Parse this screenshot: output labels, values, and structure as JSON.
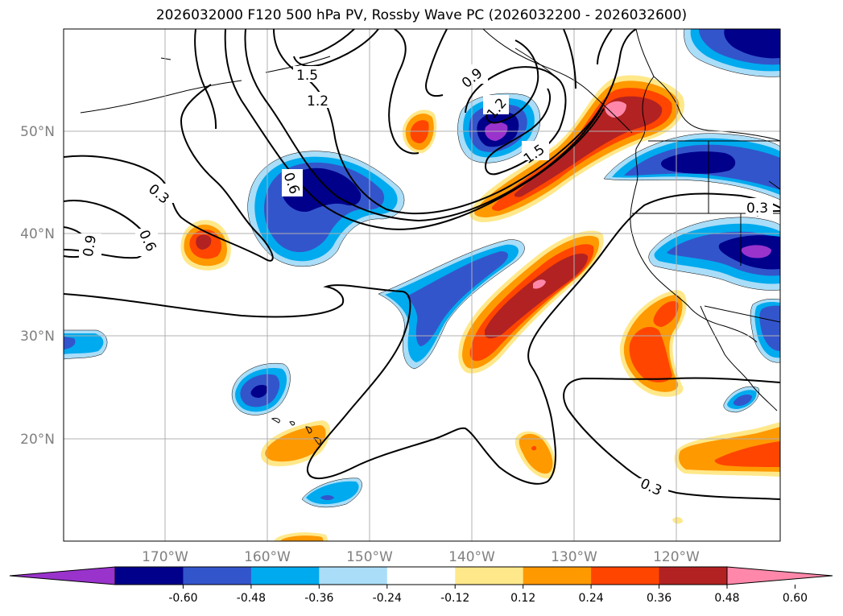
{
  "title": "2026032000 F120 500 hPa PV, Rossby Wave PC (2026032200 - 2026032600)",
  "latitude_labels": [
    "50°N",
    "40°N",
    "30°N",
    "20°N"
  ],
  "longitude_labels": [
    "170°W",
    "160°W",
    "150°W",
    "140°W",
    "130°W",
    "120°W"
  ],
  "contour_labels": [
    "1.5",
    "1.2",
    "0.9",
    "1.2",
    "1.5",
    "0.3",
    "0.6",
    "0.9",
    "0.6",
    "0.3",
    "0.3"
  ],
  "colorbar": {
    "tick_labels": [
      "-0.60",
      "-0.48",
      "-0.36",
      "-0.24",
      "-0.12",
      "0.12",
      "0.24",
      "0.36",
      "0.48",
      "0.60"
    ],
    "colors": [
      "#9933cc",
      "#00008b",
      "#3355cc",
      "#00aaee",
      "#aaddf8",
      "#ffffff",
      "#ffe88a",
      "#ff9900",
      "#ff4500",
      "#b22222",
      "#ff88aa"
    ]
  },
  "palette": {
    "purple": "#9933cc",
    "navy": "#00008b",
    "blue": "#3355cc",
    "sky": "#00aaee",
    "light": "#aaddf8",
    "yellow": "#ffe88a",
    "orange": "#ff9900",
    "redorange": "#ff4500",
    "firebrick": "#b22222",
    "pink": "#ff88aa"
  }
}
